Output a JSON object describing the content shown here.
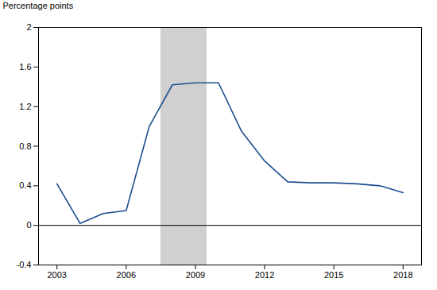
{
  "chart_data": {
    "type": "line",
    "y_label": "Percentage points",
    "x": [
      2003,
      2004,
      2005,
      2006,
      2007,
      2008,
      2009,
      2010,
      2011,
      2012,
      2013,
      2014,
      2015,
      2016,
      2017,
      2018
    ],
    "values": [
      0.42,
      0.02,
      0.12,
      0.15,
      1.0,
      1.42,
      1.44,
      1.44,
      0.95,
      0.65,
      0.44,
      0.43,
      0.43,
      0.42,
      0.4,
      0.33
    ],
    "color": "#1c4e8f",
    "shade": {
      "start": 2007.5,
      "end": 2009.5,
      "color": "#aaaaaa"
    },
    "hlines": [
      0
    ],
    "xlim": [
      2002.2,
      2018.8
    ],
    "xticks": [
      2003,
      2006,
      2009,
      2012,
      2015,
      2018
    ],
    "ylim": [
      -0.4,
      2.0
    ],
    "yticks": [
      -0.4,
      0,
      0.4,
      0.8,
      1.2,
      1.6,
      2
    ],
    "grid": false
  }
}
